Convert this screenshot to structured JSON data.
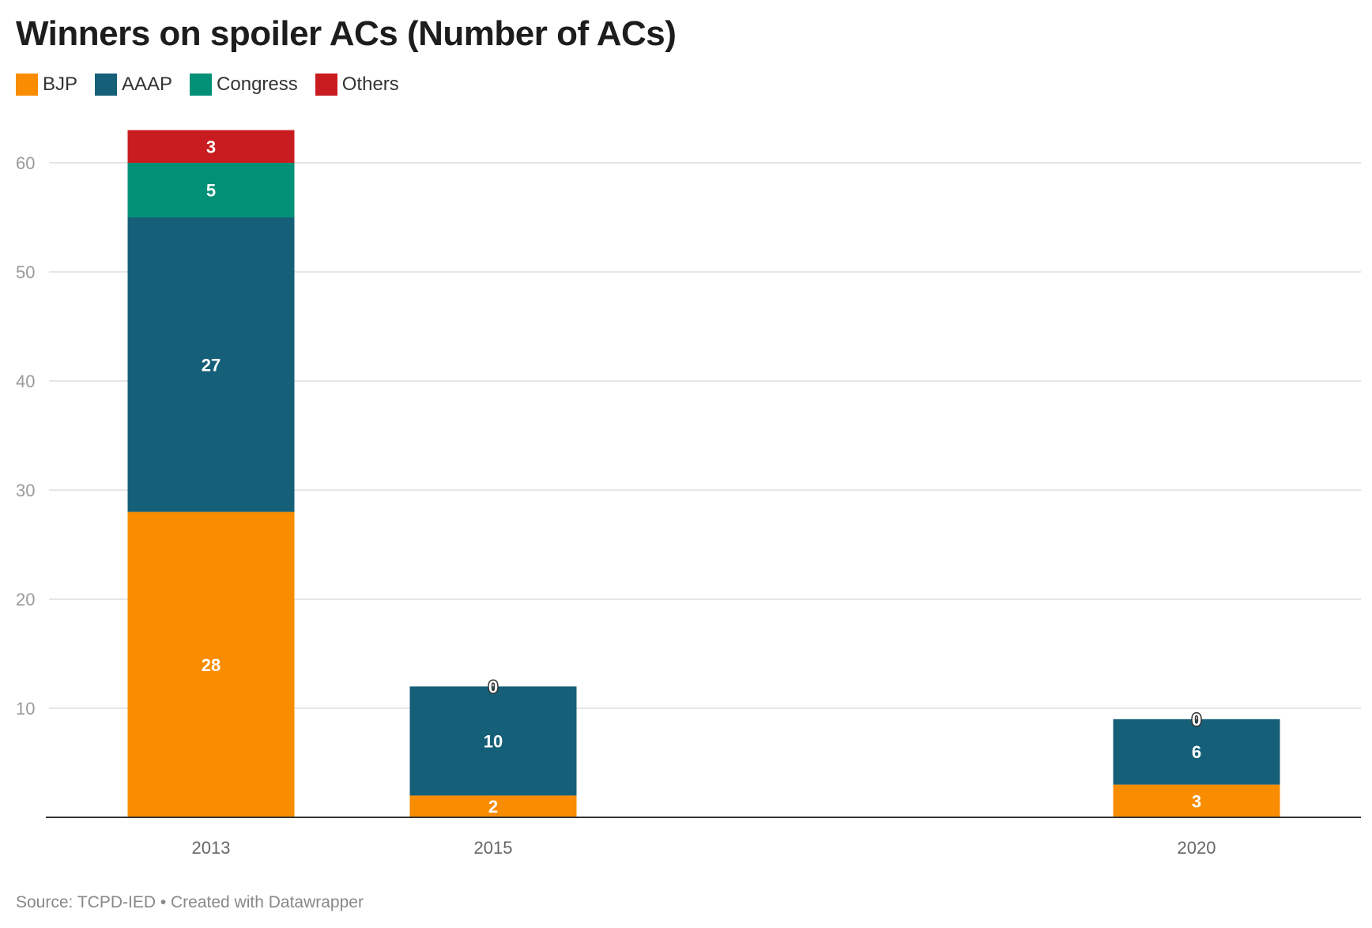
{
  "chart_data": {
    "type": "bar",
    "stacked": true,
    "title": "Winners on spoiler ACs (Number of ACs)",
    "categories": [
      "2013",
      "2015",
      "2020"
    ],
    "series": [
      {
        "name": "BJP",
        "color": "#f98c00",
        "values": [
          28,
          2,
          3
        ]
      },
      {
        "name": "AAAP",
        "color": "#165f78",
        "values": [
          27,
          10,
          6
        ]
      },
      {
        "name": "Congress",
        "color": "#029077",
        "values": [
          5,
          0,
          0
        ]
      },
      {
        "name": "Others",
        "color": "#c91c20",
        "values": [
          3,
          0,
          0
        ]
      }
    ],
    "y_ticks": [
      10,
      20,
      30,
      40,
      50,
      60
    ],
    "ylim": [
      0,
      63
    ],
    "grid": true,
    "legend_position": "top-left",
    "xlabel": "",
    "ylabel": ""
  },
  "footer": {
    "source": "Source: TCPD-IED • Created with Datawrapper"
  }
}
